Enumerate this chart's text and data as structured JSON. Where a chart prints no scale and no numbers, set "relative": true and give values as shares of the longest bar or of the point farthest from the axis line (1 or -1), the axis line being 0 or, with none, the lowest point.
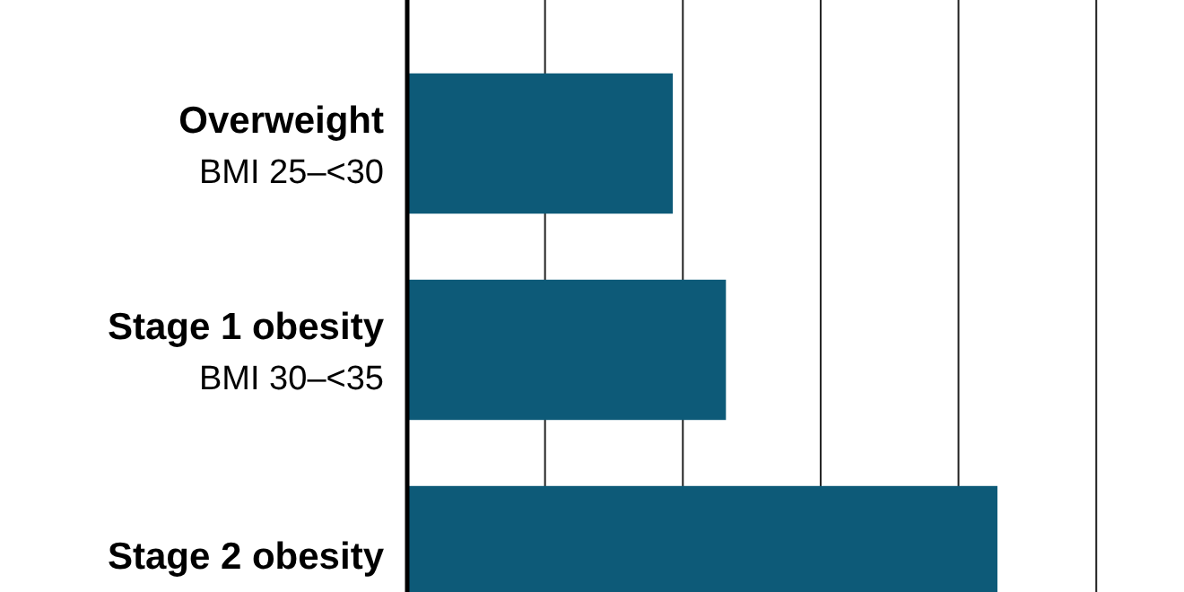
{
  "chart_data": {
    "type": "bar",
    "orientation": "horizontal",
    "relative": true,
    "categories": [
      "Overweight\nBMI 25–<30",
      "Stage 1 obesity\nBMI 30–<35",
      "Stage 2 obesity"
    ],
    "values": [
      0.45,
      0.54,
      1
    ],
    "color": "#0d5a78",
    "grid": "x"
  }
}
